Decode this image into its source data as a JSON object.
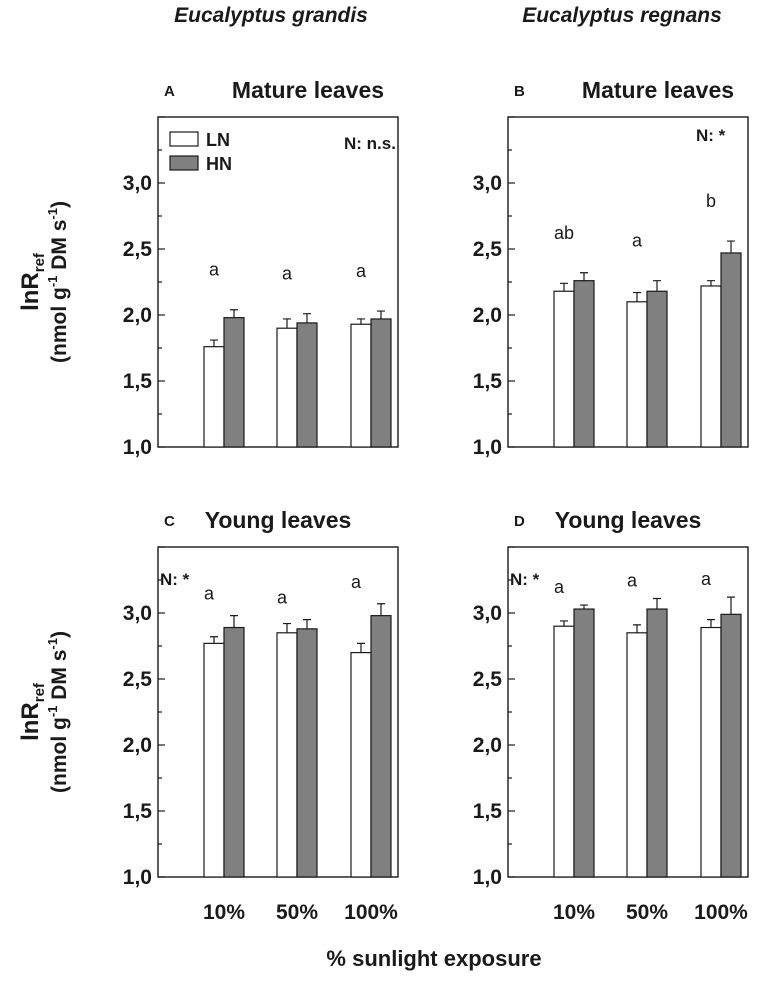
{
  "figure": {
    "species_left": "Eucalyptus grandis",
    "species_right": "Eucalyptus regnans",
    "ylabel_main": "lnR",
    "ylabel_sub": "ref",
    "ylabel_units_prefix": "(nmol g",
    "ylabel_units_exp1": "-1",
    "ylabel_units_mid": " DM s",
    "ylabel_units_exp2": "-1",
    "ylabel_units_suffix": ")",
    "xlabel": "% sunlight exposure",
    "x_ticks": [
      "10%",
      "50%",
      "100%"
    ],
    "y_ticks": [
      "1,0",
      "1,5",
      "2,0",
      "2,5",
      "3,0"
    ],
    "legend": [
      {
        "name": "LN",
        "color": "#ffffff"
      },
      {
        "name": "HN",
        "color": "#808080"
      }
    ]
  },
  "chart_data": [
    {
      "panel": "A",
      "title": "Mature leaves",
      "type": "bar",
      "species": "Eucalyptus grandis",
      "categories": [
        "10%",
        "50%",
        "100%"
      ],
      "ylim": [
        1.0,
        3.5
      ],
      "series": [
        {
          "name": "LN",
          "values": [
            1.76,
            1.9,
            1.93
          ],
          "errors": [
            0.05,
            0.07,
            0.04
          ]
        },
        {
          "name": "HN",
          "values": [
            1.98,
            1.94,
            1.97
          ],
          "errors": [
            0.06,
            0.07,
            0.06
          ]
        }
      ],
      "annotations": [
        "a",
        "a",
        "a"
      ],
      "significance": "N: n.s.",
      "show_legend": true
    },
    {
      "panel": "B",
      "title": "Mature leaves",
      "type": "bar",
      "species": "Eucalyptus regnans",
      "categories": [
        "10%",
        "50%",
        "100%"
      ],
      "ylim": [
        1.0,
        3.5
      ],
      "series": [
        {
          "name": "LN",
          "values": [
            2.18,
            2.1,
            2.22
          ],
          "errors": [
            0.06,
            0.07,
            0.04
          ]
        },
        {
          "name": "HN",
          "values": [
            2.26,
            2.18,
            2.47
          ],
          "errors": [
            0.06,
            0.08,
            0.09
          ]
        }
      ],
      "annotations": [
        "ab",
        "a",
        "b"
      ],
      "significance": "N: *",
      "show_legend": false
    },
    {
      "panel": "C",
      "title": "Young leaves",
      "type": "bar",
      "species": "Eucalyptus grandis",
      "categories": [
        "10%",
        "50%",
        "100%"
      ],
      "ylim": [
        1.0,
        3.5
      ],
      "series": [
        {
          "name": "LN",
          "values": [
            2.77,
            2.85,
            2.7
          ],
          "errors": [
            0.05,
            0.07,
            0.07
          ]
        },
        {
          "name": "HN",
          "values": [
            2.89,
            2.88,
            2.98
          ],
          "errors": [
            0.09,
            0.07,
            0.09
          ]
        }
      ],
      "annotations": [
        "a",
        "a",
        "a"
      ],
      "significance": "N: *",
      "show_legend": false
    },
    {
      "panel": "D",
      "title": "Young leaves",
      "type": "bar",
      "species": "Eucalyptus regnans",
      "categories": [
        "10%",
        "50%",
        "100%"
      ],
      "ylim": [
        1.0,
        3.5
      ],
      "series": [
        {
          "name": "LN",
          "values": [
            2.9,
            2.85,
            2.89
          ],
          "errors": [
            0.04,
            0.06,
            0.06
          ]
        },
        {
          "name": "HN",
          "values": [
            3.03,
            3.03,
            2.99
          ],
          "errors": [
            0.03,
            0.08,
            0.13
          ]
        }
      ],
      "annotations": [
        "a",
        "a",
        "a"
      ],
      "significance": "N: *",
      "show_legend": false
    }
  ]
}
